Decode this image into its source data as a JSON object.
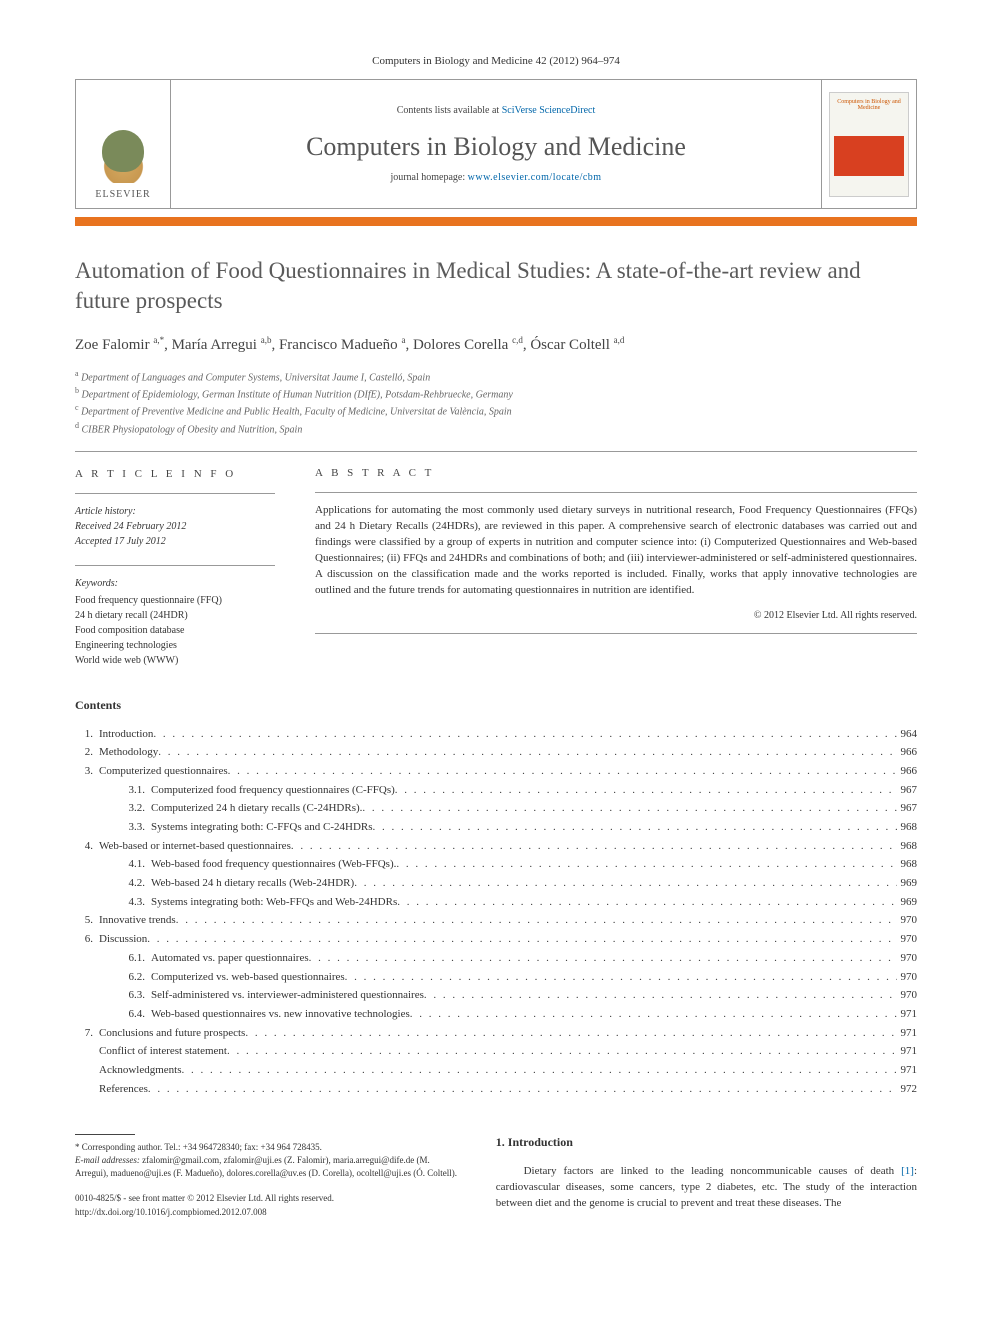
{
  "journal_ref": "Computers in Biology and Medicine 42 (2012) 964–974",
  "header": {
    "contents_prefix": "Contents lists available at ",
    "contents_link": "SciVerse ScienceDirect",
    "journal_name": "Computers in Biology and Medicine",
    "homepage_prefix": "journal homepage: ",
    "homepage_link": "www.elsevier.com/locate/cbm",
    "publisher": "ELSEVIER",
    "cover_text": "Computers in Biology and Medicine"
  },
  "title": "Automation of Food Questionnaires in Medical Studies: A state-of-the-art review and future prospects",
  "authors_html": "Zoe Falomir <sup>a,*</sup>, María Arregui <sup>a,b</sup>, Francisco Madueño <sup>a</sup>, Dolores Corella <sup>c,d</sup>, Óscar Coltell <sup>a,d</sup>",
  "affiliations": [
    {
      "sup": "a",
      "text": "Department of Languages and Computer Systems, Universitat Jaume I, Castelló, Spain"
    },
    {
      "sup": "b",
      "text": "Department of Epidemiology, German Institute of Human Nutrition (DIfE), Potsdam-Rehbruecke, Germany"
    },
    {
      "sup": "c",
      "text": "Department of Preventive Medicine and Public Health, Faculty of Medicine, Universitat de València, Spain"
    },
    {
      "sup": "d",
      "text": "CIBER Physiopatology of Obesity and Nutrition, Spain"
    }
  ],
  "info": {
    "heading": "A R T I C L E  I N F O",
    "history_head": "Article history:",
    "received": "Received 24 February 2012",
    "accepted": "Accepted 17 July 2012",
    "keywords_head": "Keywords:",
    "keywords": [
      "Food frequency questionnaire (FFQ)",
      "24 h dietary recall (24HDR)",
      "Food composition database",
      "Engineering technologies",
      "World wide web (WWW)"
    ]
  },
  "abstract": {
    "heading": "A B S T R A C T",
    "text": "Applications for automating the most commonly used dietary surveys in nutritional research, Food Frequency Questionnaires (FFQs) and 24 h Dietary Recalls (24HDRs), are reviewed in this paper. A comprehensive search of electronic databases was carried out and findings were classified by a group of experts in nutrition and computer science into: (i) Computerized Questionnaires and Web-based Questionnaires; (ii) FFQs and 24HDRs and combinations of both; and (iii) interviewer-administered or self-administered questionnaires. A discussion on the classification made and the works reported is included. Finally, works that apply innovative technologies are outlined and the future trends for automating questionnaires in nutrition are identified.",
    "copyright": "© 2012 Elsevier Ltd. All rights reserved."
  },
  "contents_head": "Contents",
  "toc": [
    {
      "lvl": 1,
      "num": "1.",
      "title": "Introduction",
      "page": "964"
    },
    {
      "lvl": 1,
      "num": "2.",
      "title": "Methodology",
      "page": "966"
    },
    {
      "lvl": 1,
      "num": "3.",
      "title": "Computerized questionnaires",
      "page": "966"
    },
    {
      "lvl": 2,
      "num": "3.1.",
      "title": "Computerized food frequency questionnaires (C-FFQs)",
      "page": "967"
    },
    {
      "lvl": 2,
      "num": "3.2.",
      "title": "Computerized 24 h dietary recalls (C-24HDRs).",
      "page": "967"
    },
    {
      "lvl": 2,
      "num": "3.3.",
      "title": "Systems integrating both: C-FFQs and C-24HDRs",
      "page": "968"
    },
    {
      "lvl": 1,
      "num": "4.",
      "title": "Web-based or internet-based questionnaires",
      "page": "968"
    },
    {
      "lvl": 2,
      "num": "4.1.",
      "title": "Web-based food frequency questionnaires (Web-FFQs).",
      "page": "968"
    },
    {
      "lvl": 2,
      "num": "4.2.",
      "title": "Web-based 24 h dietary recalls (Web-24HDR)",
      "page": "969"
    },
    {
      "lvl": 2,
      "num": "4.3.",
      "title": "Systems integrating both: Web-FFQs and Web-24HDRs",
      "page": "969"
    },
    {
      "lvl": 1,
      "num": "5.",
      "title": "Innovative trends",
      "page": "970"
    },
    {
      "lvl": 1,
      "num": "6.",
      "title": "Discussion",
      "page": "970"
    },
    {
      "lvl": 2,
      "num": "6.1.",
      "title": "Automated vs. paper questionnaires",
      "page": "970"
    },
    {
      "lvl": 2,
      "num": "6.2.",
      "title": "Computerized vs. web-based questionnaires",
      "page": "970"
    },
    {
      "lvl": 2,
      "num": "6.3.",
      "title": "Self-administered vs. interviewer-administered questionnaires",
      "page": "970"
    },
    {
      "lvl": 2,
      "num": "6.4.",
      "title": "Web-based questionnaires vs. new innovative technologies",
      "page": "971"
    },
    {
      "lvl": 1,
      "num": "7.",
      "title": "Conclusions and future prospects",
      "page": "971"
    },
    {
      "lvl": 1,
      "num": "",
      "title": "Conflict of interest statement",
      "page": "971"
    },
    {
      "lvl": 1,
      "num": "",
      "title": "Acknowledgments",
      "page": "971"
    },
    {
      "lvl": 1,
      "num": "",
      "title": "References",
      "page": "972"
    }
  ],
  "footer": {
    "corresponding": "* Corresponding author. Tel.: +34 964728340; fax: +34 964 728435.",
    "emails_label": "E-mail addresses:",
    "emails": " zfalomir@gmail.com, zfalomir@uji.es (Z. Falomir), maria.arregui@dife.de (M. Arregui), madueno@uji.es (F. Madueño), dolores.corella@uv.es (D. Corella), ocoltell@uji.es (Ó. Coltell).",
    "issn": "0010-4825/$ - see front matter © 2012 Elsevier Ltd. All rights reserved.",
    "doi": "http://dx.doi.org/10.1016/j.compbiomed.2012.07.008"
  },
  "intro": {
    "heading": "1. Introduction",
    "text_pre": "Dietary factors are linked to the leading noncommunicable causes of death ",
    "ref": "[1]",
    "text_post": ": cardiovascular diseases, some cancers, type 2 diabetes, etc. The study of the interaction between diet and the genome is crucial to prevent and treat these diseases. The"
  },
  "colors": {
    "accent_orange": "#e8731f",
    "link_blue": "#0066aa",
    "text_gray": "#5a5a5a",
    "border_gray": "#999999"
  }
}
